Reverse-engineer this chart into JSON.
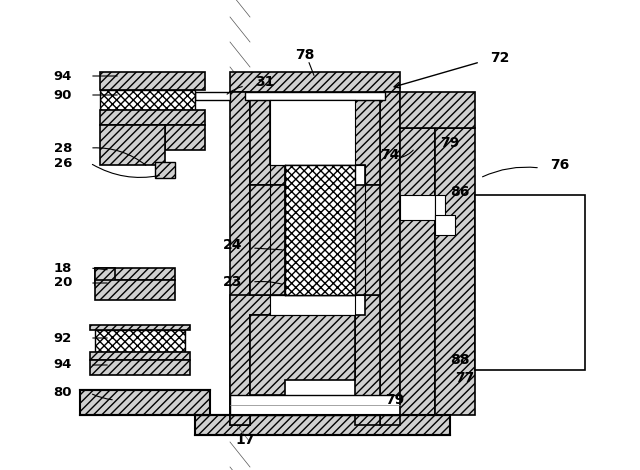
{
  "bg_color": "#ffffff",
  "fig_w": 6.4,
  "fig_h": 4.7,
  "dpi": 100
}
